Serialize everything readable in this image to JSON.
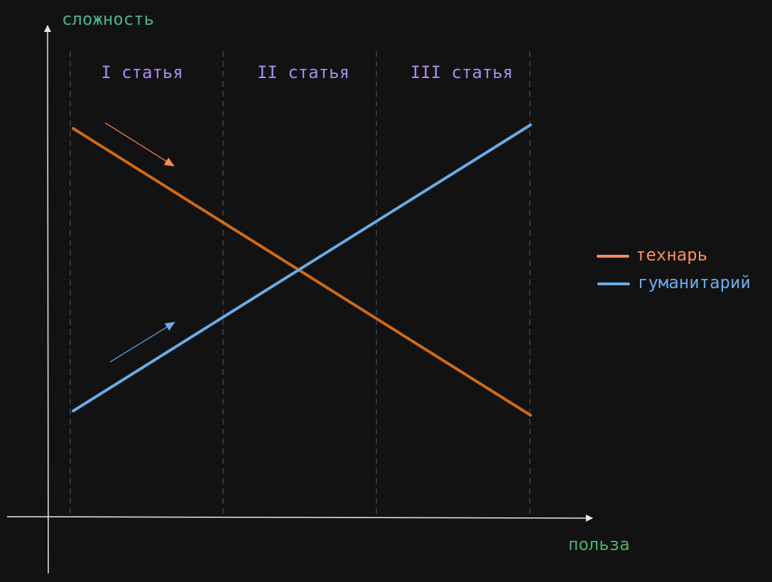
{
  "axes": {
    "y_label": "сложность",
    "x_label": "польза"
  },
  "sections": [
    "I статья",
    "II статья",
    "III статья"
  ],
  "legend": [
    {
      "label": "технарь",
      "color": "#ff8c5a",
      "line_color": "#cc6a1a"
    },
    {
      "label": "гуманитарий",
      "color": "#6aabe8",
      "line_color": "#6aabe8"
    }
  ]
}
